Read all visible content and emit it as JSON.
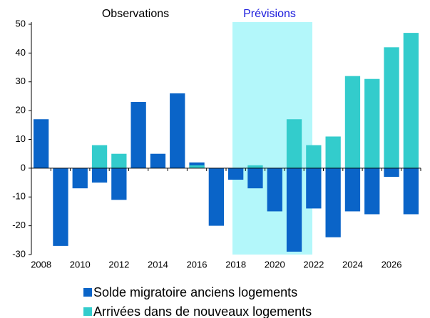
{
  "chart_data": {
    "type": "bar",
    "annotations": [
      "Observations",
      "Prévisions"
    ],
    "categories": [
      2008,
      null,
      2010,
      null,
      2012,
      null,
      2014,
      null,
      2016,
      null,
      2018,
      null,
      2020,
      null,
      2022,
      null,
      2024,
      null,
      2026,
      null
    ],
    "series": [
      {
        "name": "Solde migratoire anciens logements",
        "color": "#0a64c8",
        "values": [
          17,
          -27,
          -7,
          -5,
          -11,
          23,
          5,
          26,
          2,
          -20,
          -4,
          -7,
          -15,
          -29,
          -14,
          -24,
          -15,
          -16,
          -3,
          -16
        ]
      },
      {
        "name": "Arrivées dans de nouveaux logements",
        "color": "#33cccc",
        "values": [
          0,
          0,
          0,
          8,
          5,
          0,
          0,
          0,
          1,
          0,
          0,
          1,
          0,
          17,
          8,
          11,
          32,
          31,
          42,
          47
        ]
      }
    ],
    "ylim": [
      -30,
      50
    ],
    "yticks": [
      -30,
      -20,
      -10,
      0,
      10,
      20,
      30,
      40,
      50
    ],
    "grid": false
  }
}
